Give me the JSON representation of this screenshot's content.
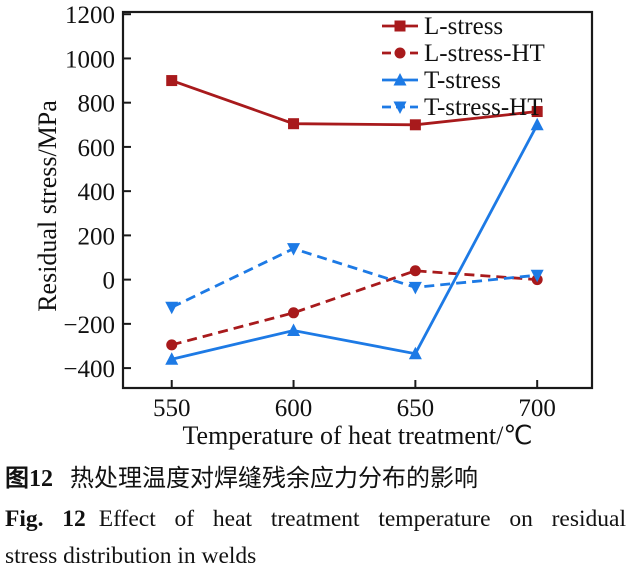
{
  "figure": {
    "caption_zh_label": "图12",
    "caption_zh_text": "热处理温度对焊缝残余应力分布的影响",
    "caption_en_label": "Fig. 12",
    "caption_en_line1": "Effect of heat treatment temperature on residual",
    "caption_en_line2": "stress distribution in welds"
  },
  "chart_data": {
    "type": "line",
    "title": "",
    "xlabel": "Temperature of heat treatment/℃",
    "ylabel": "Residual stress/MPa",
    "x": [
      550,
      600,
      650,
      700
    ],
    "xticks": [
      550,
      600,
      650,
      700
    ],
    "yticks": [
      1200,
      1000,
      800,
      600,
      400,
      200,
      0,
      -200,
      -400
    ],
    "xlim": [
      530,
      722.5
    ],
    "ylim": [
      -490,
      1210
    ],
    "grid": false,
    "legend_position": "top-right-inside",
    "axis_color": "#1a1a1a",
    "text_color": "#111111",
    "series": [
      {
        "name": "L-stress",
        "color": "#a81a1c",
        "line": "solid",
        "marker": "square",
        "values": [
          900,
          705,
          700,
          760
        ]
      },
      {
        "name": "L-stress-HT",
        "color": "#a81a1c",
        "line": "dashed",
        "marker": "circle",
        "values": [
          -295,
          -150,
          40,
          0
        ]
      },
      {
        "name": "T-stress",
        "color": "#1d7ae5",
        "line": "solid",
        "marker": "triangle-up",
        "values": [
          -360,
          -230,
          -335,
          700
        ]
      },
      {
        "name": "T-stress-HT",
        "color": "#1d7ae5",
        "line": "dashed",
        "marker": "triangle-down",
        "values": [
          -125,
          140,
          -35,
          20
        ]
      }
    ]
  }
}
